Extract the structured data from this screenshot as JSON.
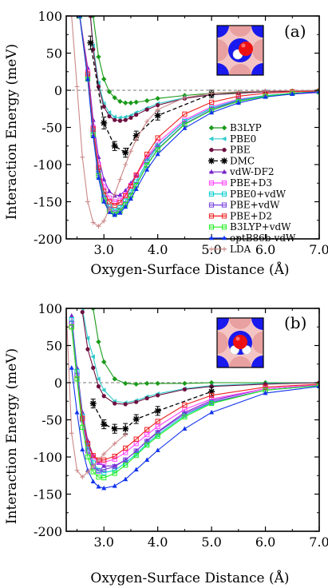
{
  "chart_data": [
    {
      "type": "line",
      "panel_label": "(a)",
      "xlabel": "Oxygen-Surface Distance (Å)",
      "ylabel": "Interaction Energy (meV)",
      "xlim": [
        2.3,
        7.0
      ],
      "ylim": [
        -200,
        100
      ],
      "xticks": [
        3.0,
        4.0,
        5.0,
        6.0,
        7.0
      ],
      "xtick_labels": [
        "3.0",
        "4.0",
        "5.0",
        "6.0",
        "7.0"
      ],
      "yticks": [
        -200,
        -150,
        -100,
        -50,
        0,
        50,
        100
      ],
      "ytick_labels": [
        "-200",
        "-150",
        "-100",
        "-50",
        "0",
        "50",
        "100"
      ],
      "zero_line": true,
      "inset": "molecule-on-surface",
      "legend_position": "right",
      "series": [
        {
          "name": "B3LYP",
          "color": "#1a9a1a",
          "marker": "diamond",
          "dash": false,
          "x": [
            2.8,
            2.9,
            3.0,
            3.1,
            3.2,
            3.3,
            3.4,
            3.5,
            3.6,
            3.8,
            4.0,
            4.5,
            5.0,
            5.5,
            6.0,
            6.5,
            7.0
          ],
          "y": [
            100,
            45,
            15,
            -2,
            -10,
            -15,
            -17,
            -17,
            -16,
            -14,
            -11,
            -7,
            -4,
            -3,
            -2,
            -1,
            -1
          ]
        },
        {
          "name": "PBE0",
          "color": "#33cccc",
          "marker": "triangle-left",
          "dash": false,
          "x": [
            2.75,
            2.8,
            2.9,
            3.0,
            3.1,
            3.2,
            3.3,
            3.4,
            3.5,
            3.6,
            3.8,
            4.0,
            4.5,
            5.0,
            5.5,
            6.0,
            7.0
          ],
          "y": [
            100,
            60,
            10,
            -18,
            -30,
            -36,
            -37,
            -36,
            -34,
            -30,
            -24,
            -18,
            -10,
            -6,
            -4,
            -2,
            -1
          ]
        },
        {
          "name": "PBE",
          "color": "#6e1040",
          "marker": "circle",
          "dash": false,
          "x": [
            2.75,
            2.8,
            2.9,
            3.0,
            3.1,
            3.2,
            3.3,
            3.4,
            3.5,
            3.6,
            3.8,
            4.0,
            4.5,
            5.0,
            5.5,
            6.0,
            7.0
          ],
          "y": [
            100,
            55,
            5,
            -22,
            -35,
            -40,
            -41,
            -40,
            -37,
            -33,
            -26,
            -20,
            -11,
            -6,
            -4,
            -2,
            -1
          ]
        },
        {
          "name": "DMC",
          "color": "#000000",
          "marker": "star",
          "dash": true,
          "errorbars": true,
          "x": [
            2.75,
            3.0,
            3.2,
            3.4,
            3.6,
            4.0,
            5.0
          ],
          "y": [
            64,
            -44,
            -75,
            -84,
            -61,
            -34,
            -5
          ],
          "err": [
            9,
            8,
            6,
            6,
            6,
            6,
            5
          ]
        },
        {
          "name": "vdW-DF2",
          "color": "#7722cc",
          "marker": "triangle-up",
          "dash": false,
          "x": [
            2.55,
            2.7,
            2.8,
            2.9,
            3.0,
            3.1,
            3.2,
            3.3,
            3.4,
            3.5,
            3.6,
            3.8,
            4.0,
            4.5,
            5.0,
            5.5,
            6.0,
            6.5,
            7.0
          ],
          "y": [
            100,
            30,
            -40,
            -90,
            -120,
            -136,
            -142,
            -141,
            -135,
            -125,
            -114,
            -92,
            -74,
            -42,
            -24,
            -14,
            -8,
            -5,
            -3
          ]
        },
        {
          "name": "PBE+D3",
          "color": "#ff44ff",
          "marker": "square",
          "dash": false,
          "x": [
            2.55,
            2.7,
            2.8,
            2.9,
            3.0,
            3.1,
            3.2,
            3.3,
            3.4,
            3.5,
            3.6,
            3.8,
            4.0,
            4.5,
            5.0,
            5.5,
            6.0,
            6.5,
            7.0
          ],
          "y": [
            100,
            25,
            -50,
            -100,
            -130,
            -145,
            -150,
            -148,
            -140,
            -128,
            -115,
            -90,
            -70,
            -40,
            -22,
            -12,
            -7,
            -4,
            -2
          ]
        },
        {
          "name": "PBE0+vdW",
          "color": "#00cccc",
          "marker": "square",
          "dash": false,
          "x": [
            2.55,
            2.7,
            2.8,
            2.9,
            3.0,
            3.1,
            3.2,
            3.3,
            3.4,
            3.5,
            3.6,
            3.8,
            4.0,
            4.5,
            5.0,
            5.5,
            6.0,
            6.5,
            7.0
          ],
          "y": [
            100,
            20,
            -55,
            -108,
            -140,
            -156,
            -161,
            -158,
            -149,
            -137,
            -123,
            -96,
            -75,
            -42,
            -24,
            -13,
            -7,
            -4,
            -2
          ]
        },
        {
          "name": "PBE+vdW",
          "color": "#7744dd",
          "marker": "square",
          "dash": false,
          "x": [
            2.55,
            2.7,
            2.8,
            2.9,
            3.0,
            3.1,
            3.2,
            3.3,
            3.4,
            3.5,
            3.6,
            3.8,
            4.0,
            4.5,
            5.0,
            5.5,
            6.0,
            6.5,
            7.0
          ],
          "y": [
            100,
            18,
            -58,
            -112,
            -145,
            -160,
            -165,
            -162,
            -153,
            -141,
            -127,
            -100,
            -79,
            -45,
            -26,
            -14,
            -8,
            -4,
            -2
          ]
        },
        {
          "name": "PBE+D2",
          "color": "#ee2222",
          "marker": "square",
          "dash": false,
          "x": [
            2.55,
            2.7,
            2.8,
            2.9,
            3.0,
            3.1,
            3.2,
            3.3,
            3.4,
            3.5,
            3.6,
            3.8,
            4.0,
            4.5,
            5.0,
            5.5,
            6.0,
            6.5,
            7.0
          ],
          "y": [
            100,
            22,
            -52,
            -104,
            -136,
            -150,
            -155,
            -151,
            -142,
            -129,
            -114,
            -86,
            -64,
            -32,
            -16,
            -8,
            -4,
            -2,
            -1
          ]
        },
        {
          "name": "B3LYP+vdW",
          "color": "#22ee22",
          "marker": "square",
          "dash": false,
          "x": [
            2.55,
            2.7,
            2.8,
            2.9,
            3.0,
            3.1,
            3.2,
            3.3,
            3.4,
            3.5,
            3.6,
            3.8,
            4.0,
            4.5,
            5.0,
            5.5,
            6.0,
            6.5,
            7.0
          ],
          "y": [
            100,
            15,
            -60,
            -115,
            -148,
            -163,
            -167,
            -163,
            -154,
            -142,
            -128,
            -101,
            -80,
            -46,
            -27,
            -15,
            -8,
            -4,
            -2
          ]
        },
        {
          "name": "optB86b-vdW",
          "color": "#1133ee",
          "marker": "triangle-up",
          "dash": false,
          "x": [
            2.55,
            2.7,
            2.8,
            2.9,
            3.0,
            3.1,
            3.2,
            3.3,
            3.4,
            3.5,
            3.6,
            3.8,
            4.0,
            4.5,
            5.0,
            5.5,
            6.0,
            6.5,
            7.0
          ],
          "y": [
            100,
            15,
            -62,
            -118,
            -150,
            -164,
            -168,
            -165,
            -157,
            -146,
            -133,
            -107,
            -86,
            -51,
            -30,
            -17,
            -9,
            -5,
            -2
          ]
        },
        {
          "name": "LDA",
          "color": "#cc8888",
          "marker": "plus",
          "dash": false,
          "x": [
            2.4,
            2.5,
            2.6,
            2.7,
            2.8,
            2.9,
            3.0,
            3.1,
            3.2,
            3.3,
            3.4,
            3.5,
            3.6,
            3.8,
            4.0,
            4.5,
            5.0,
            5.5,
            6.0,
            7.0
          ],
          "y": [
            100,
            5,
            -90,
            -150,
            -178,
            -183,
            -176,
            -160,
            -140,
            -120,
            -100,
            -82,
            -66,
            -42,
            -26,
            -10,
            -4,
            -2,
            -1,
            0
          ]
        }
      ]
    },
    {
      "type": "line",
      "panel_label": "(b)",
      "xlabel": "Oxygen-Surface Distance (Å)",
      "ylabel": "Interaction Energy (meV)",
      "xlim": [
        2.3,
        7.0
      ],
      "ylim": [
        -200,
        100
      ],
      "xticks": [
        3.0,
        4.0,
        5.0,
        6.0,
        7.0
      ],
      "xtick_labels": [
        "3.0",
        "4.0",
        "5.0",
        "6.0",
        "7.0"
      ],
      "yticks": [
        -200,
        -150,
        -100,
        -50,
        0,
        50,
        100
      ],
      "ytick_labels": [
        "-200",
        "-150",
        "-100",
        "-50",
        "0",
        "50",
        "100"
      ],
      "zero_line": true,
      "inset": "molecule-on-surface",
      "series": [
        {
          "name": "B3LYP",
          "color": "#1a9a1a",
          "marker": "diamond",
          "dash": false,
          "x": [
            2.8,
            2.9,
            3.0,
            3.2,
            3.4,
            3.6,
            3.8,
            4.0,
            4.5,
            5.0,
            6.0,
            7.0
          ],
          "y": [
            100,
            55,
            28,
            5,
            -1,
            -2,
            -1,
            -1,
            -1,
            0,
            0,
            0
          ]
        },
        {
          "name": "PBE0",
          "color": "#33cccc",
          "marker": "triangle-left",
          "dash": false,
          "x": [
            2.6,
            2.7,
            2.8,
            2.9,
            3.0,
            3.2,
            3.4,
            3.6,
            3.8,
            4.0,
            4.5,
            5.0,
            6.0,
            7.0
          ],
          "y": [
            100,
            60,
            35,
            5,
            -10,
            -25,
            -27,
            -24,
            -19,
            -15,
            -8,
            -4,
            -1,
            0
          ]
        },
        {
          "name": "PBE",
          "color": "#6e1040",
          "marker": "circle",
          "dash": false,
          "x": [
            2.6,
            2.7,
            2.8,
            2.9,
            3.0,
            3.2,
            3.4,
            3.6,
            3.8,
            4.0,
            4.5,
            5.0,
            6.0,
            7.0
          ],
          "y": [
            95,
            45,
            20,
            -5,
            -18,
            -28,
            -29,
            -26,
            -21,
            -17,
            -9,
            -5,
            -2,
            0
          ]
        },
        {
          "name": "DMC",
          "color": "#000000",
          "marker": "star",
          "dash": true,
          "errorbars": true,
          "x": [
            2.8,
            3.0,
            3.2,
            3.4,
            3.6,
            4.0,
            5.0
          ],
          "y": [
            -28,
            -56,
            -62,
            -62,
            -49,
            -38,
            -12
          ],
          "err": [
            6,
            6,
            6,
            7,
            6,
            6,
            6
          ]
        },
        {
          "name": "vdW-DF2",
          "color": "#7722cc",
          "marker": "triangle-up",
          "dash": false,
          "x": [
            2.4,
            2.5,
            2.6,
            2.7,
            2.8,
            2.9,
            3.0,
            3.2,
            3.4,
            3.6,
            3.8,
            4.0,
            4.5,
            5.0,
            6.0,
            7.0
          ],
          "y": [
            90,
            20,
            -40,
            -78,
            -98,
            -108,
            -112,
            -112,
            -104,
            -92,
            -78,
            -66,
            -40,
            -24,
            -8,
            -3
          ]
        },
        {
          "name": "PBE+D3",
          "color": "#ff44ff",
          "marker": "square",
          "dash": false,
          "x": [
            2.4,
            2.5,
            2.6,
            2.7,
            2.8,
            2.9,
            3.0,
            3.2,
            3.4,
            3.6,
            3.8,
            4.0,
            4.5,
            5.0,
            6.0,
            7.0
          ],
          "y": [
            80,
            10,
            -45,
            -82,
            -100,
            -106,
            -107,
            -103,
            -94,
            -82,
            -70,
            -59,
            -36,
            -22,
            -8,
            -3
          ]
        },
        {
          "name": "PBE0+vdW",
          "color": "#00cccc",
          "marker": "square",
          "dash": false,
          "x": [
            2.4,
            2.5,
            2.6,
            2.7,
            2.8,
            2.9,
            3.0,
            3.2,
            3.4,
            3.6,
            3.8,
            4.0,
            4.5,
            5.0,
            6.0,
            7.0
          ],
          "y": [
            85,
            15,
            -45,
            -85,
            -108,
            -118,
            -121,
            -118,
            -108,
            -96,
            -82,
            -70,
            -44,
            -27,
            -10,
            -4
          ]
        },
        {
          "name": "PBE+vdW",
          "color": "#7744dd",
          "marker": "square",
          "dash": false,
          "x": [
            2.4,
            2.5,
            2.6,
            2.7,
            2.8,
            2.9,
            3.0,
            3.2,
            3.4,
            3.6,
            3.8,
            4.0,
            4.5,
            5.0,
            6.0,
            7.0
          ],
          "y": [
            80,
            10,
            -50,
            -92,
            -113,
            -119,
            -117,
            -113,
            -104,
            -92,
            -79,
            -67,
            -42,
            -26,
            -10,
            -4
          ]
        },
        {
          "name": "PBE+D2",
          "color": "#ee2222",
          "marker": "square",
          "dash": false,
          "x": [
            2.4,
            2.5,
            2.6,
            2.7,
            2.8,
            2.9,
            3.0,
            3.2,
            3.4,
            3.6,
            3.8,
            4.0,
            4.5,
            5.0,
            6.0,
            7.0
          ],
          "y": [
            75,
            5,
            -48,
            -82,
            -98,
            -104,
            -104,
            -99,
            -88,
            -76,
            -63,
            -52,
            -30,
            -17,
            -6,
            -2
          ]
        },
        {
          "name": "B3LYP+vdW",
          "color": "#22ee22",
          "marker": "square",
          "dash": false,
          "x": [
            2.4,
            2.5,
            2.6,
            2.7,
            2.8,
            2.9,
            3.0,
            3.2,
            3.4,
            3.6,
            3.8,
            4.0,
            4.5,
            5.0,
            6.0,
            7.0
          ],
          "y": [
            75,
            5,
            -60,
            -100,
            -120,
            -127,
            -128,
            -122,
            -111,
            -98,
            -84,
            -72,
            -46,
            -28,
            -10,
            -4
          ]
        },
        {
          "name": "optB86b-vdW",
          "color": "#1133ee",
          "marker": "triangle-up",
          "dash": false,
          "x": [
            2.4,
            2.5,
            2.6,
            2.7,
            2.8,
            2.9,
            3.0,
            3.2,
            3.4,
            3.6,
            3.8,
            4.0,
            4.5,
            5.0,
            6.0,
            7.0
          ],
          "y": [
            20,
            -40,
            -90,
            -118,
            -133,
            -140,
            -142,
            -139,
            -130,
            -117,
            -104,
            -91,
            -62,
            -40,
            -14,
            -5
          ]
        },
        {
          "name": "LDA",
          "color": "#cc8888",
          "marker": "plus",
          "dash": false,
          "x": [
            2.3,
            2.4,
            2.5,
            2.6,
            2.7,
            2.8,
            2.9,
            3.0,
            3.2,
            3.4
          ],
          "y": [
            100,
            -68,
            -118,
            -127,
            -120,
            -112,
            -104,
            -96,
            -82,
            -70
          ]
        }
      ]
    }
  ]
}
